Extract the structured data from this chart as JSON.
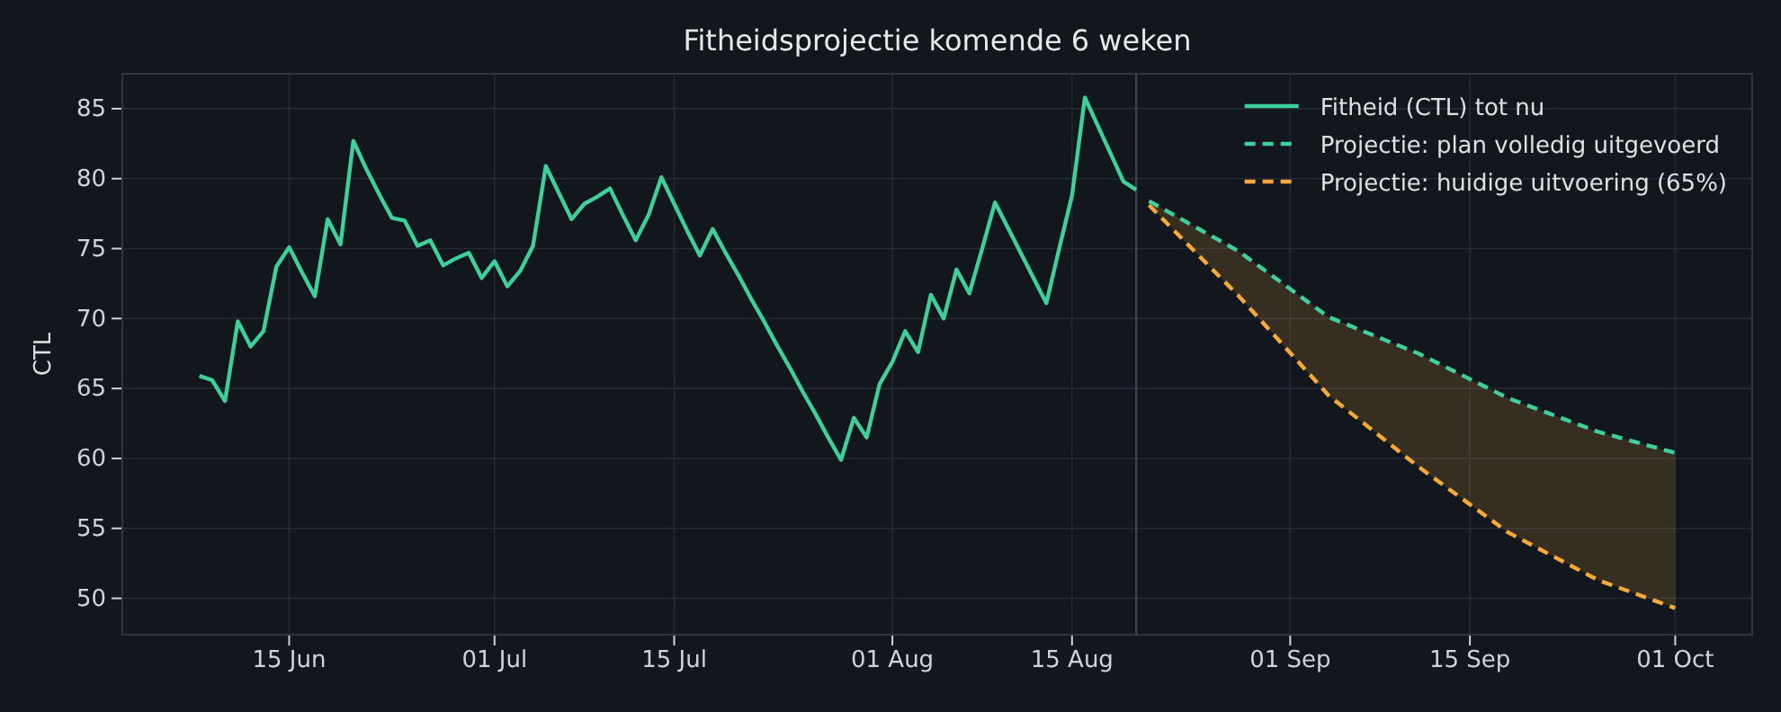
{
  "chart_data": {
    "type": "line",
    "title": "Fitheidsprojectie komende 6 weken",
    "ylabel": "CTL",
    "xlim": [
      "--06-02",
      "--10-07"
    ],
    "ylim": [
      47.4,
      87.5
    ],
    "xticks": [
      {
        "value": "--06-15",
        "label": "15 Jun"
      },
      {
        "value": "--07-01",
        "label": "01 Jul"
      },
      {
        "value": "--07-15",
        "label": "15 Jul"
      },
      {
        "value": "--08-01",
        "label": "01 Aug"
      },
      {
        "value": "--08-15",
        "label": "15 Aug"
      },
      {
        "value": "--09-01",
        "label": "01 Sep"
      },
      {
        "value": "--09-15",
        "label": "15 Sep"
      },
      {
        "value": "--10-01",
        "label": "01 Oct"
      }
    ],
    "yticks": [
      50,
      55,
      60,
      65,
      70,
      75,
      80,
      85
    ],
    "grid": true,
    "legend": "top right",
    "ref_lines": [
      {
        "axis": "x",
        "value": "--08-20",
        "color": "#3a4150"
      }
    ],
    "series": [
      {
        "name": "Fitheid (CTL) tot nu",
        "color": "#3ecf9a",
        "line_style": "solid",
        "x": [
          "--06-08",
          "--06-09",
          "--06-10",
          "--06-11",
          "--06-12",
          "--06-13",
          "--06-14",
          "--06-15",
          "--06-16",
          "--06-17",
          "--06-18",
          "--06-19",
          "--06-20",
          "--06-21",
          "--06-22",
          "--06-23",
          "--06-24",
          "--06-25",
          "--06-26",
          "--06-27",
          "--06-28",
          "--06-29",
          "--06-30",
          "--07-01",
          "--07-02",
          "--07-03",
          "--07-04",
          "--07-05",
          "--07-06",
          "--07-07",
          "--07-08",
          "--07-09",
          "--07-10",
          "--07-11",
          "--07-12",
          "--07-13",
          "--07-14",
          "--07-15",
          "--07-16",
          "--07-17",
          "--07-18",
          "--07-19",
          "--07-20",
          "--07-21",
          "--07-22",
          "--07-23",
          "--07-24",
          "--07-25",
          "--07-26",
          "--07-27",
          "--07-28",
          "--07-29",
          "--07-30",
          "--07-31",
          "--08-01",
          "--08-02",
          "--08-03",
          "--08-04",
          "--08-05",
          "--08-06",
          "--08-07",
          "--08-08",
          "--08-09",
          "--08-10",
          "--08-11",
          "--08-12",
          "--08-13",
          "--08-14",
          "--08-15",
          "--08-16",
          "--08-17",
          "--08-18",
          "--08-19",
          "--08-20"
        ],
        "values": [
          65.9,
          65.6,
          64.1,
          69.8,
          68.0,
          69.1,
          73.7,
          75.1,
          73.3,
          71.6,
          77.1,
          75.3,
          82.7,
          80.7,
          78.9,
          77.2,
          77.0,
          75.2,
          75.6,
          73.8,
          74.3,
          74.7,
          72.9,
          74.1,
          72.3,
          73.4,
          75.2,
          80.9,
          79.0,
          77.1,
          78.2,
          78.7,
          79.3,
          77.4,
          75.6,
          77.4,
          80.1,
          78.2,
          76.3,
          74.5,
          76.4,
          74.7,
          73.1,
          71.4,
          69.8,
          68.1,
          66.5,
          64.8,
          63.2,
          61.5,
          59.9,
          62.9,
          61.5,
          65.3,
          66.9,
          69.1,
          67.6,
          71.7,
          70.0,
          73.5,
          71.8,
          75.0,
          78.3,
          76.5,
          74.7,
          72.9,
          71.1,
          75.0,
          78.8,
          85.8,
          83.8,
          81.8,
          79.8,
          79.2
        ]
      },
      {
        "name": "Projectie: plan volledig uitgevoerd",
        "color": "#3ecf9a",
        "line_style": "dashed",
        "x": [
          "--08-21",
          "--08-28",
          "--09-04",
          "--09-11",
          "--09-18",
          "--09-25",
          "--10-01"
        ],
        "values": [
          78.4,
          74.8,
          70.1,
          67.5,
          64.3,
          61.9,
          60.4
        ],
        "lower": [
          78.1,
          71.6,
          64.5,
          59.4,
          54.7,
          51.3,
          49.3
        ],
        "upper": [
          78.4,
          74.8,
          70.1,
          67.5,
          64.3,
          61.9,
          60.4
        ]
      },
      {
        "name": "Projectie: huidige uitvoering (65%)",
        "color": "#f5a93a",
        "line_style": "dashed",
        "x": [
          "--08-21",
          "--08-28",
          "--09-04",
          "--09-11",
          "--09-18",
          "--09-25",
          "--10-01"
        ],
        "values": [
          78.1,
          71.6,
          64.5,
          59.4,
          54.7,
          51.3,
          49.3
        ]
      }
    ]
  }
}
